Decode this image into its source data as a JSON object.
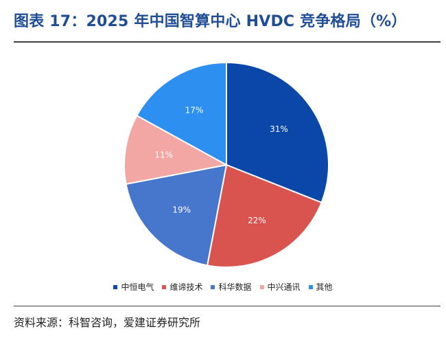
{
  "title": "图表 17：2025 年中国智算中心 HVDC 竞争格局（%）",
  "source": "资料来源：科智咨询，爱建证券研究所",
  "colors": {
    "title": "#1f4e96",
    "rule": "#404040",
    "slice_label": "#ffffff"
  },
  "chart_data": {
    "type": "pie",
    "title": "",
    "start_angle_deg": 0,
    "direction": "clockwise",
    "legend_position": "bottom",
    "slices": [
      {
        "name": "中恒电气",
        "value": 31,
        "label": "31%",
        "color": "#0b47a8"
      },
      {
        "name": "维谛技术",
        "value": 22,
        "label": "22%",
        "color": "#d9534f"
      },
      {
        "name": "科华数据",
        "value": 19,
        "label": "19%",
        "color": "#4677cd"
      },
      {
        "name": "中兴通讯",
        "value": 11,
        "label": "11%",
        "color": "#f2a7a4"
      },
      {
        "name": "其他",
        "value": 17,
        "label": "17%",
        "color": "#2d8ff0"
      }
    ]
  }
}
